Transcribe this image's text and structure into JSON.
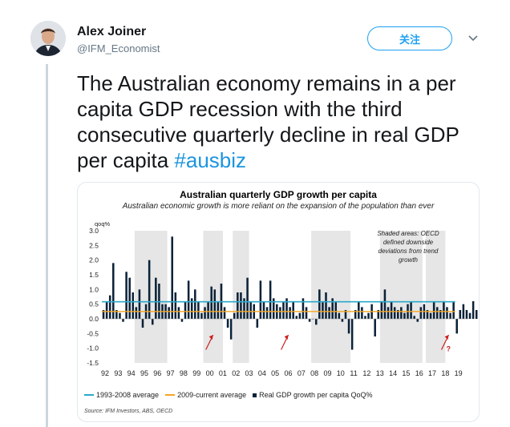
{
  "tweet": {
    "author_name": "Alex Joiner",
    "author_handle": "@IFM_Economist",
    "follow_label": "关注",
    "text": "The Australian economy remains in a per capita GDP recession with the third consecutive quarterly decline in real GDP per capita ",
    "hashtag": "#ausbiz"
  },
  "icons": {
    "avatar": "author-avatar",
    "caret": "chevron-down-icon"
  },
  "colors": {
    "accent": "#1da1f2",
    "hashtag": "#1b95e0",
    "bar": "#0b2238",
    "avg_1993_2008": "#29a9c9",
    "avg_2009_current": "#f5a623",
    "shade": "#e6e6e6",
    "arrow": "#cc1f1f"
  },
  "chart_data": {
    "type": "bar",
    "title": "Australian quarterly GDP growth per capita",
    "subtitle": "Australian economic growth is more reliant on the expansion of the population than ever",
    "ylabel": "qoq%",
    "ylim": [
      -1.5,
      3.0
    ],
    "yticks": [
      "3.0",
      "2.5",
      "2.0",
      "1.5",
      "1.0",
      "0.5",
      "0.0",
      "-0.5",
      "-1.0",
      "-1.5"
    ],
    "xticks": [
      "92",
      "93",
      "94",
      "95",
      "96",
      "97",
      "98",
      "99",
      "00",
      "01",
      "02",
      "03",
      "04",
      "05",
      "06",
      "07",
      "08",
      "09",
      "10",
      "11",
      "12",
      "13",
      "14",
      "15",
      "16",
      "17",
      "18",
      "19"
    ],
    "x_start": 1992.0,
    "series": [
      {
        "name": "Real GDP growth per capita QoQ%",
        "values": [
          0.3,
          0.6,
          0.8,
          1.9,
          0.3,
          0.2,
          -0.1,
          1.6,
          1.4,
          0.9,
          0.4,
          1.0,
          -0.3,
          0.5,
          2.0,
          -0.2,
          1.4,
          1.2,
          0.5,
          0.5,
          0.4,
          2.8,
          0.9,
          0.4,
          -0.1,
          0.6,
          1.3,
          0.7,
          1.0,
          0.6,
          0.2,
          0.4,
          0.6,
          1.1,
          1.0,
          0.6,
          1.2,
          0.4,
          -0.3,
          -0.7,
          0.2,
          0.9,
          0.9,
          0.7,
          1.4,
          0.6,
          0.5,
          -0.3,
          1.3,
          0.6,
          0.4,
          1.3,
          0.7,
          0.5,
          0.4,
          0.6,
          0.7,
          0.4,
          0.6,
          0.1,
          0.2,
          0.7,
          0.4,
          -0.1,
          0.0,
          -0.2,
          1.0,
          0.6,
          0.9,
          0.4,
          0.7,
          0.6,
          0.2,
          -0.1,
          0.3,
          -0.5,
          -1.05,
          0.3,
          0.6,
          0.4,
          0.1,
          0.2,
          0.5,
          -0.6,
          0.3,
          0.6,
          1.0,
          0.4,
          0.6,
          0.4,
          0.3,
          0.4,
          0.2,
          0.5,
          0.6,
          0.1,
          -0.1,
          0.4,
          0.5,
          0.3,
          0.2,
          0.6,
          0.4,
          0.3,
          0.6,
          0.4,
          0.2,
          0.6,
          -0.5,
          0.3,
          0.5,
          0.3,
          0.2,
          0.6,
          0.3,
          0.5,
          0.6,
          0.4,
          -0.2,
          -0.1,
          -0.2
        ]
      }
    ],
    "averages": [
      {
        "name": "1993-2008 average",
        "value": 0.58
      },
      {
        "name": "2009-current average",
        "value": 0.25
      }
    ],
    "shaded_periods": [
      [
        1994.5,
        1997.0
      ],
      [
        1999.75,
        2001.25
      ],
      [
        2002.0,
        2003.25
      ],
      [
        2008.0,
        2011.0
      ],
      [
        2013.25,
        2016.5
      ],
      [
        2016.75,
        2018.25
      ]
    ],
    "annotation": "Shaded areas: OECD defined downside deviations from trend growth",
    "arrows": [
      2000.5,
      2006.25,
      2018.5
    ],
    "question_mark": "?",
    "legend_position": "bottom",
    "grid": false
  },
  "source": "Source: IFM Investors, ABS, OECD"
}
